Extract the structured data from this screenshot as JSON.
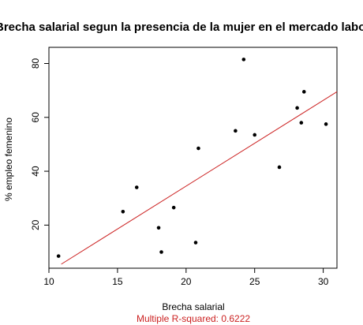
{
  "chart_data": {
    "type": "scatter",
    "title": "Brecha salarial segun la presencia de la mujer en el mercado laboral",
    "xlabel": "Brecha salarial",
    "ylabel": "% empleo femenino",
    "annotation": "Multiple R-squared:  0.6222",
    "xlim": [
      10,
      31
    ],
    "ylim": [
      4,
      86
    ],
    "x_ticks": [
      10,
      15,
      20,
      25,
      30
    ],
    "y_ticks": [
      20,
      40,
      60,
      80
    ],
    "grid": false,
    "points": [
      {
        "x": 10.7,
        "y": 8.5
      },
      {
        "x": 15.4,
        "y": 25
      },
      {
        "x": 16.4,
        "y": 34
      },
      {
        "x": 18.0,
        "y": 19
      },
      {
        "x": 18.2,
        "y": 10
      },
      {
        "x": 19.1,
        "y": 26.5
      },
      {
        "x": 20.7,
        "y": 13.5
      },
      {
        "x": 20.9,
        "y": 48.5
      },
      {
        "x": 23.6,
        "y": 55
      },
      {
        "x": 24.2,
        "y": 81.5
      },
      {
        "x": 25.0,
        "y": 53.5
      },
      {
        "x": 26.8,
        "y": 41.5
      },
      {
        "x": 28.1,
        "y": 63.5
      },
      {
        "x": 28.4,
        "y": 58
      },
      {
        "x": 28.6,
        "y": 69.5
      },
      {
        "x": 30.2,
        "y": 57.5
      }
    ],
    "regression_line": {
      "x": [
        10.9,
        31
      ],
      "y": [
        5.5,
        69.5
      ]
    },
    "colors": {
      "points": "#000000",
      "fit_line": "#cc2222",
      "annotation": "#cc2222"
    }
  }
}
